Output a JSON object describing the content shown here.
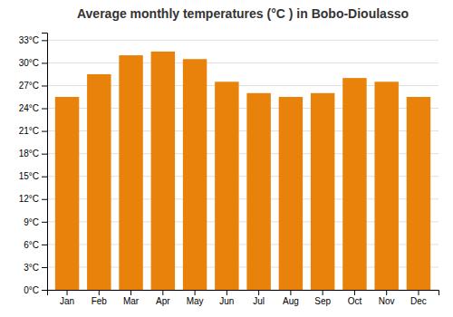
{
  "chart_data": {
    "type": "bar",
    "title": "Average monthly temperatures (°C ) in Bobo-Dioulasso",
    "categories": [
      "Jan",
      "Feb",
      "Mar",
      "Apr",
      "May",
      "Jun",
      "Jul",
      "Aug",
      "Sep",
      "Oct",
      "Nov",
      "Dec"
    ],
    "values": [
      25.5,
      28.5,
      31.0,
      31.5,
      30.5,
      27.5,
      26.0,
      25.5,
      26.0,
      28.0,
      27.5,
      25.5
    ],
    "color": "#E8820A",
    "ylim": [
      0,
      34
    ],
    "yticks": [
      {
        "value": 0,
        "label": "0°C"
      },
      {
        "value": 3,
        "label": "3°C"
      },
      {
        "value": 6,
        "label": "6°C"
      },
      {
        "value": 9,
        "label": "9°C"
      },
      {
        "value": 12,
        "label": "12°C"
      },
      {
        "value": 15,
        "label": "15°C"
      },
      {
        "value": 18,
        "label": "18°C"
      },
      {
        "value": 21,
        "label": "21°C"
      },
      {
        "value": 24,
        "label": "24°C"
      },
      {
        "value": 27,
        "label": "27°C"
      },
      {
        "value": 30,
        "label": "30°C"
      },
      {
        "value": 33,
        "label": "33°C"
      }
    ],
    "grid": true
  }
}
